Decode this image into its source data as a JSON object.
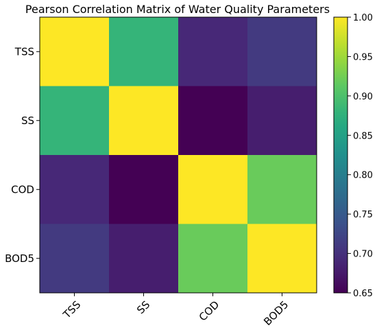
{
  "chart_data": {
    "type": "heatmap",
    "title": "Pearson Correlation Matrix of Water Quality Parameters",
    "x_categories": [
      "TSS",
      "SS",
      "COD",
      "BOD5"
    ],
    "y_categories": [
      "TSS",
      "SS",
      "COD",
      "BOD5"
    ],
    "values": [
      [
        1.0,
        0.88,
        0.69,
        0.71
      ],
      [
        0.88,
        1.0,
        0.65,
        0.68
      ],
      [
        0.69,
        0.65,
        1.0,
        0.92
      ],
      [
        0.71,
        0.68,
        0.92,
        1.0
      ]
    ],
    "colormap": "viridis",
    "colorbar": {
      "range": [
        0.65,
        1.0
      ],
      "ticks": [
        "0.65",
        "0.70",
        "0.75",
        "0.80",
        "0.85",
        "0.90",
        "0.95",
        "1.00"
      ]
    },
    "grid": false
  }
}
